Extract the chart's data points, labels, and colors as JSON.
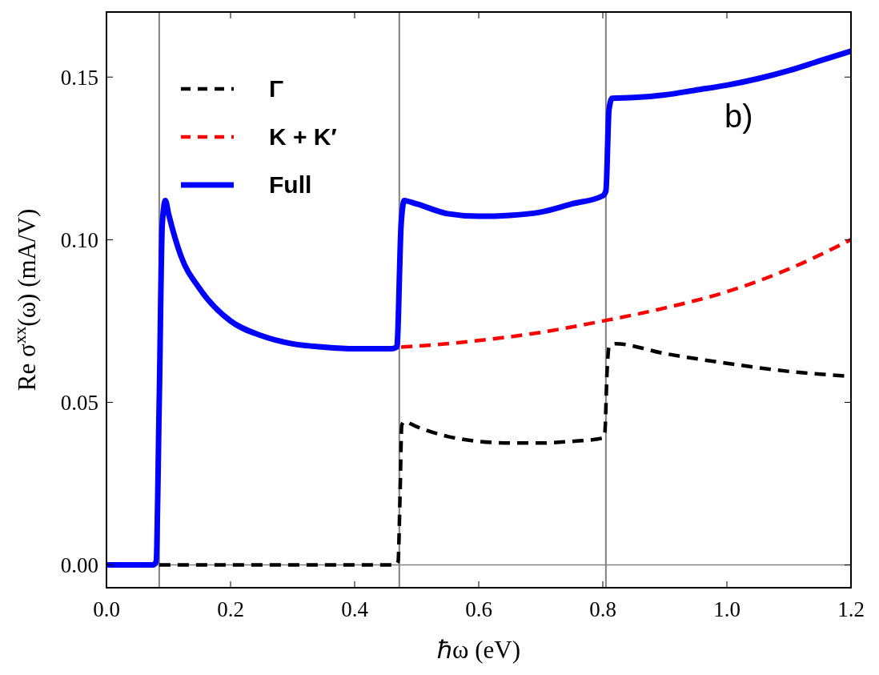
{
  "chart_data": {
    "type": "line",
    "xlabel": "ℏω (eV)",
    "ylabel": "Re σ$^{xx}$(ω) (mA/V)",
    "xlim": [
      0,
      1.2
    ],
    "xticks": [
      {
        "value": 0,
        "label": "0.0"
      },
      {
        "value": 0.2,
        "label": "0.2"
      },
      {
        "value": 0.4,
        "label": "0.4"
      },
      {
        "value": 0.6,
        "label": "0.6"
      },
      {
        "value": 0.8,
        "label": "0.8"
      },
      {
        "value": 1.0,
        "label": "1.0"
      },
      {
        "value": 1.2,
        "label": "1.2"
      }
    ],
    "ylim": [
      -0.007,
      0.17
    ],
    "yticks": [
      {
        "value": 0,
        "label": "0.00"
      },
      {
        "value": 0.05,
        "label": "0.05"
      },
      {
        "value": 0.1,
        "label": "0.10"
      },
      {
        "value": 0.15,
        "label": "0.15"
      }
    ],
    "grid": false,
    "legend": "top left",
    "annotations": [
      "b)"
    ],
    "ref_lines": [
      {
        "axis": "x",
        "value": 0.085,
        "color": "#808080"
      },
      {
        "axis": "x",
        "value": 0.472,
        "color": "#808080"
      },
      {
        "axis": "x",
        "value": 0.805,
        "color": "#808080"
      },
      {
        "axis": "y",
        "value": 0,
        "color": "#808080"
      }
    ],
    "series": [
      {
        "name": "Γ",
        "color": "#000000",
        "line_style": "dashed",
        "x": [
          0.085,
          0.2,
          0.3,
          0.4,
          0.465,
          0.47,
          0.473,
          0.476,
          0.48,
          0.5,
          0.55,
          0.6,
          0.65,
          0.7,
          0.75,
          0.8,
          0.803,
          0.807,
          0.81,
          0.82,
          0.9,
          1.0,
          1.1,
          1.2
        ],
        "values": [
          0,
          0,
          0,
          0,
          0,
          0.001,
          0.02,
          0.043,
          0.044,
          0.0425,
          0.0395,
          0.038,
          0.0375,
          0.0375,
          0.038,
          0.039,
          0.04,
          0.06,
          0.067,
          0.068,
          0.065,
          0.062,
          0.0595,
          0.058
        ]
      },
      {
        "name": "K + K′",
        "color": "#ff0000",
        "line_style": "dashed",
        "x": [
          0.475,
          0.5,
          0.6,
          0.7,
          0.8,
          0.9,
          1.0,
          1.1,
          1.2
        ],
        "values": [
          0.067,
          0.0673,
          0.069,
          0.0715,
          0.075,
          0.079,
          0.084,
          0.091,
          0.1
        ]
      },
      {
        "name": "Full",
        "color": "#0000ff",
        "line_style": "solid",
        "x": [
          0,
          0.075,
          0.08,
          0.085,
          0.09,
          0.095,
          0.1,
          0.12,
          0.15,
          0.2,
          0.25,
          0.3,
          0.35,
          0.4,
          0.46,
          0.468,
          0.475,
          0.48,
          0.5,
          0.55,
          0.6,
          0.65,
          0.7,
          0.75,
          0.8,
          0.805,
          0.81,
          0.815,
          0.85,
          0.9,
          0.95,
          1.0,
          1.05,
          1.1,
          1.15,
          1.2
        ],
        "values": [
          0,
          0,
          0.001,
          0.05,
          0.105,
          0.112,
          0.108,
          0.095,
          0.085,
          0.075,
          0.0705,
          0.068,
          0.067,
          0.0665,
          0.0665,
          0.067,
          0.105,
          0.112,
          0.111,
          0.108,
          0.1072,
          0.1075,
          0.1085,
          0.111,
          0.1135,
          0.115,
          0.14,
          0.1435,
          0.1437,
          0.1445,
          0.146,
          0.1475,
          0.1495,
          0.152,
          0.155,
          0.158
        ]
      }
    ]
  }
}
